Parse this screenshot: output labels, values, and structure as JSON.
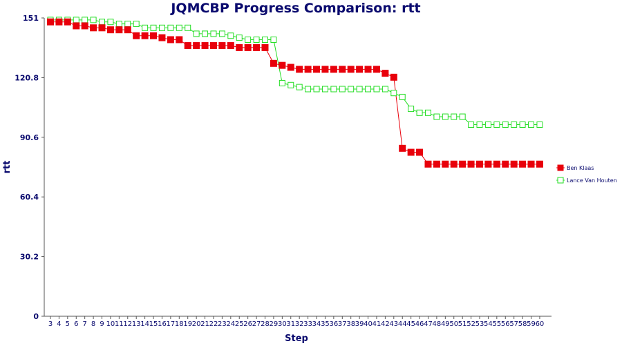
{
  "chart_data": {
    "type": "line",
    "title": "JQMCBP Progress Comparison: rtt",
    "xlabel": "Step",
    "ylabel": "rtt",
    "ylim": [
      0,
      151
    ],
    "yticks": [
      "0",
      "30.2",
      "60.4",
      "90.6",
      "120.8",
      "151"
    ],
    "x": [
      3,
      4,
      5,
      6,
      7,
      8,
      9,
      10,
      11,
      12,
      13,
      14,
      15,
      16,
      17,
      18,
      19,
      20,
      21,
      22,
      23,
      24,
      25,
      26,
      27,
      28,
      29,
      30,
      31,
      32,
      33,
      34,
      35,
      36,
      37,
      38,
      39,
      40,
      41,
      42,
      43,
      44,
      45,
      46,
      47,
      48,
      49,
      50,
      51,
      52,
      53,
      54,
      55,
      56,
      57,
      58,
      59,
      60
    ],
    "grid": false,
    "legend_position": "right",
    "series": [
      {
        "name": "Ben Klaas",
        "color": "#e8000b",
        "marker": "filled-square",
        "values": [
          149,
          149,
          149,
          147,
          147,
          146,
          146,
          145,
          145,
          145,
          142,
          142,
          142,
          141,
          140,
          140,
          137,
          137,
          137,
          137,
          137,
          137,
          136,
          136,
          136,
          136,
          128,
          127,
          126,
          125,
          125,
          125,
          125,
          125,
          125,
          125,
          125,
          125,
          125,
          123,
          121,
          85,
          83,
          83,
          77,
          77,
          77,
          77,
          77,
          77,
          77,
          77,
          77,
          77,
          77,
          77,
          77,
          77
        ]
      },
      {
        "name": "Lance Van Houten",
        "color": "#22dd22",
        "marker": "hollow-square",
        "values": [
          150,
          150,
          150,
          150,
          150,
          150,
          149,
          149,
          148,
          148,
          148,
          146,
          146,
          146,
          146,
          146,
          146,
          143,
          143,
          143,
          143,
          142,
          141,
          140,
          140,
          140,
          140,
          118,
          117,
          116,
          115,
          115,
          115,
          115,
          115,
          115,
          115,
          115,
          115,
          115,
          113,
          111,
          105,
          103,
          103,
          101,
          101,
          101,
          101,
          97,
          97,
          97,
          97,
          97,
          97,
          97,
          97,
          97
        ]
      }
    ]
  }
}
